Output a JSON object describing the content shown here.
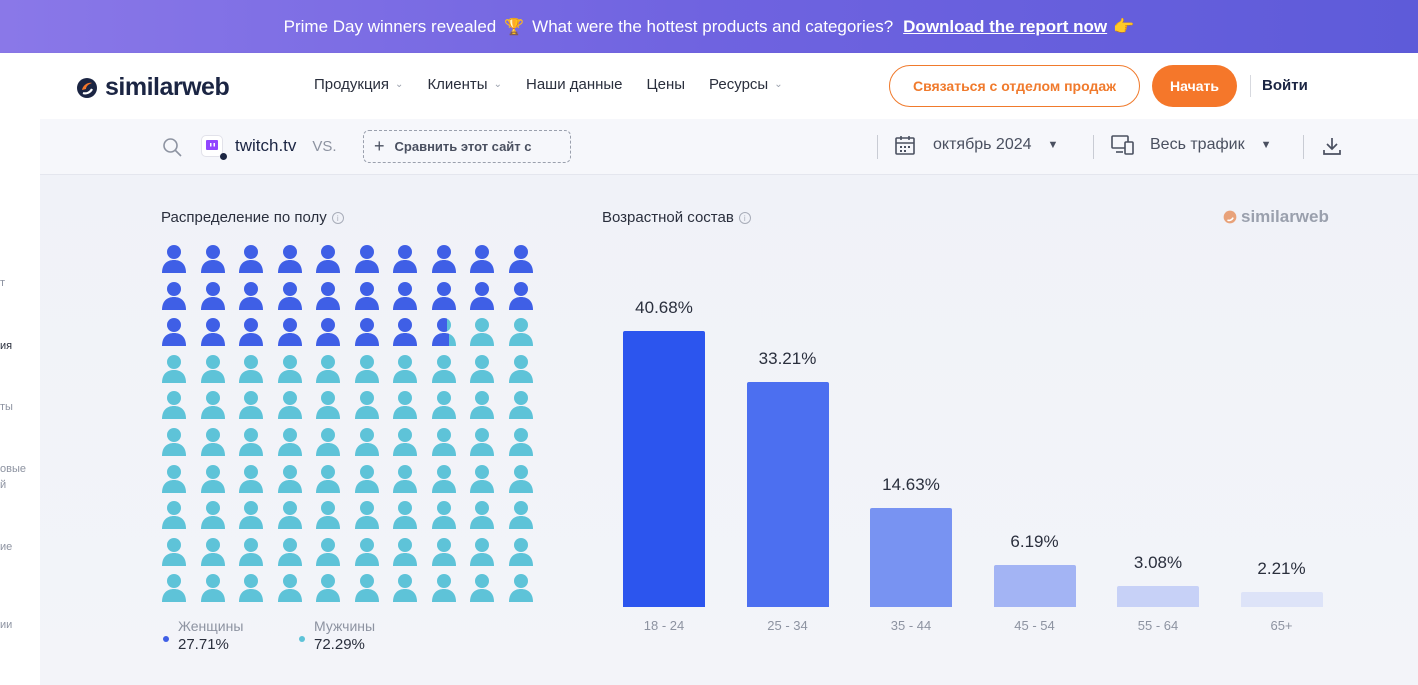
{
  "banner": {
    "text": "Prime Day winners revealed",
    "question": "What were the hottest products and categories?",
    "link": "Download the report now"
  },
  "nav": {
    "logo": "similarweb",
    "menu": [
      {
        "label": "Продукция",
        "chevron": true
      },
      {
        "label": "Клиенты",
        "chevron": true
      },
      {
        "label": "Наши данные",
        "chevron": false
      },
      {
        "label": "Цены",
        "chevron": false
      },
      {
        "label": "Ресурсы",
        "chevron": true
      }
    ],
    "sales_button": "Связаться с отделом продаж",
    "start_button": "Начать",
    "login": "Войти"
  },
  "left_strip": [
    "т",
    "ия",
    "ты",
    "овые",
    "й",
    "ие",
    "ии"
  ],
  "toolbar": {
    "site": "twitch.tv",
    "vs": "VS.",
    "compare": "Сравнить этот сайт с",
    "date": "октябрь 2024",
    "traffic": "Весь трафик"
  },
  "watermark": "similarweb",
  "gender": {
    "title": "Распределение по полу",
    "female_label": "Женщины",
    "female_value": "27.71%",
    "male_label": "Мужчины",
    "male_value": "72.29%",
    "female_share": 27.71,
    "female_color": "#3f5fe6",
    "male_color": "#5ec3d8"
  },
  "age": {
    "title": "Возрастной состав"
  },
  "chart_data": {
    "type": "bar",
    "title": "Возрастной состав",
    "categories": [
      "18 - 24",
      "25 - 34",
      "35 - 44",
      "45 - 54",
      "55 - 64",
      "65+"
    ],
    "values": [
      40.68,
      33.21,
      14.63,
      6.19,
      3.08,
      2.21
    ],
    "value_labels": [
      "40.68%",
      "33.21%",
      "14.63%",
      "6.19%",
      "3.08%",
      "2.21%"
    ],
    "colors": [
      "#2c55ee",
      "#4c6ff0",
      "#7893f2",
      "#a3b4f4",
      "#c7d1f7",
      "#dde3f8"
    ],
    "ylim": [
      0,
      40.68
    ],
    "grid": false
  }
}
